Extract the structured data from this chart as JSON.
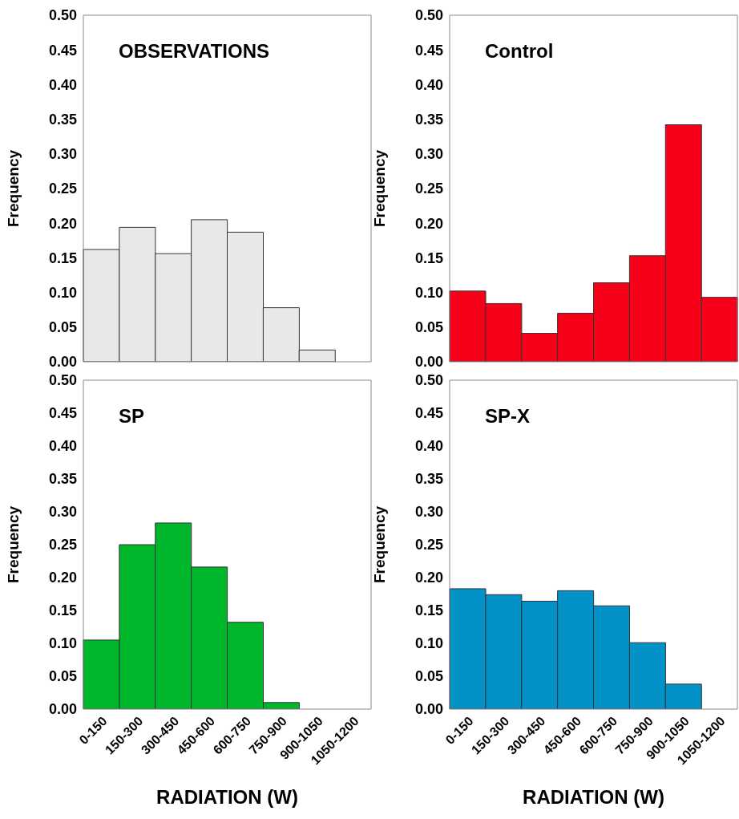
{
  "chart_data": [
    {
      "type": "bar",
      "title": "OBSERVATIONS",
      "ylabel": "Frequency",
      "categories": [
        null,
        null,
        null,
        null,
        null,
        null,
        null,
        null
      ],
      "values": [
        0.162,
        0.194,
        0.156,
        0.205,
        0.187,
        0.078,
        0.017,
        0
      ],
      "color": "#e8e8e8",
      "ylim": [
        0,
        0.5
      ],
      "yticks": [
        {
          "value": 0,
          "label": "0.00"
        },
        {
          "value": 0.05,
          "label": "0.05"
        },
        {
          "value": 0.1,
          "label": "0.10"
        },
        {
          "value": 0.15,
          "label": "0.15"
        },
        {
          "value": 0.2,
          "label": "0.20"
        },
        {
          "value": 0.25,
          "label": "0.25"
        },
        {
          "value": 0.3,
          "label": "0.30"
        },
        {
          "value": 0.35,
          "label": "0.35"
        },
        {
          "value": 0.4,
          "label": "0.40"
        },
        {
          "value": 0.45,
          "label": "0.45"
        },
        {
          "value": 0.5,
          "label": "0.50"
        }
      ],
      "tick_labels": "y"
    },
    {
      "type": "bar",
      "title": "Control",
      "ylabel": "Frequency",
      "categories": [
        null,
        null,
        null,
        null,
        null,
        null,
        null,
        null
      ],
      "values": [
        0.102,
        0.084,
        0.041,
        0.07,
        0.114,
        0.153,
        0.342,
        0.093
      ],
      "color": "#f70019",
      "ylim": [
        0,
        0.5
      ],
      "yticks": [
        {
          "value": 0,
          "label": "0.00"
        },
        {
          "value": 0.05,
          "label": "0.05"
        },
        {
          "value": 0.1,
          "label": "0.10"
        },
        {
          "value": 0.15,
          "label": "0.15"
        },
        {
          "value": 0.2,
          "label": "0.20"
        },
        {
          "value": 0.25,
          "label": "0.25"
        },
        {
          "value": 0.3,
          "label": "0.30"
        },
        {
          "value": 0.35,
          "label": "0.35"
        },
        {
          "value": 0.4,
          "label": "0.40"
        },
        {
          "value": 0.45,
          "label": "0.45"
        },
        {
          "value": 0.5,
          "label": "0.50"
        }
      ],
      "tick_labels": "y"
    },
    {
      "type": "bar",
      "title": "SP",
      "ylabel": "Frequency",
      "xlabel": "RADIATION (W)",
      "categories": [
        "0-150",
        "150-300",
        "300-450",
        "450-600",
        "600-750",
        "750-900",
        "900-1050",
        "1050-1200"
      ],
      "values": [
        0.105,
        0.25,
        0.283,
        0.216,
        0.132,
        0.01,
        0,
        0
      ],
      "color": "#00b62a",
      "ylim": [
        0,
        0.5
      ],
      "yticks": [
        {
          "value": 0,
          "label": "0.00"
        },
        {
          "value": 0.05,
          "label": "0.05"
        },
        {
          "value": 0.1,
          "label": "0.10"
        },
        {
          "value": 0.15,
          "label": "0.15"
        },
        {
          "value": 0.2,
          "label": "0.20"
        },
        {
          "value": 0.25,
          "label": "0.25"
        },
        {
          "value": 0.3,
          "label": "0.30"
        },
        {
          "value": 0.35,
          "label": "0.35"
        },
        {
          "value": 0.4,
          "label": "0.40"
        },
        {
          "value": 0.45,
          "label": "0.45"
        },
        {
          "value": 0.5,
          "label": "0.50"
        }
      ]
    },
    {
      "type": "bar",
      "title": "SP-X",
      "ylabel": "Frequency",
      "xlabel": "RADIATION (W)",
      "categories": [
        "0-150",
        "150-300",
        "300-450",
        "450-600",
        "600-750",
        "750-900",
        "900-1050",
        "1050-1200"
      ],
      "values": [
        0.183,
        0.174,
        0.164,
        0.18,
        0.157,
        0.101,
        0.038,
        0
      ],
      "color": "#0292c8",
      "ylim": [
        0,
        0.5
      ],
      "yticks": [
        {
          "value": 0,
          "label": "0.00"
        },
        {
          "value": 0.05,
          "label": "0.05"
        },
        {
          "value": 0.1,
          "label": "0.10"
        },
        {
          "value": 0.15,
          "label": "0.15"
        },
        {
          "value": 0.2,
          "label": "0.20"
        },
        {
          "value": 0.25,
          "label": "0.25"
        },
        {
          "value": 0.3,
          "label": "0.30"
        },
        {
          "value": 0.35,
          "label": "0.35"
        },
        {
          "value": 0.4,
          "label": "0.40"
        },
        {
          "value": 0.45,
          "label": "0.45"
        },
        {
          "value": 0.5,
          "label": "0.50"
        }
      ]
    }
  ]
}
